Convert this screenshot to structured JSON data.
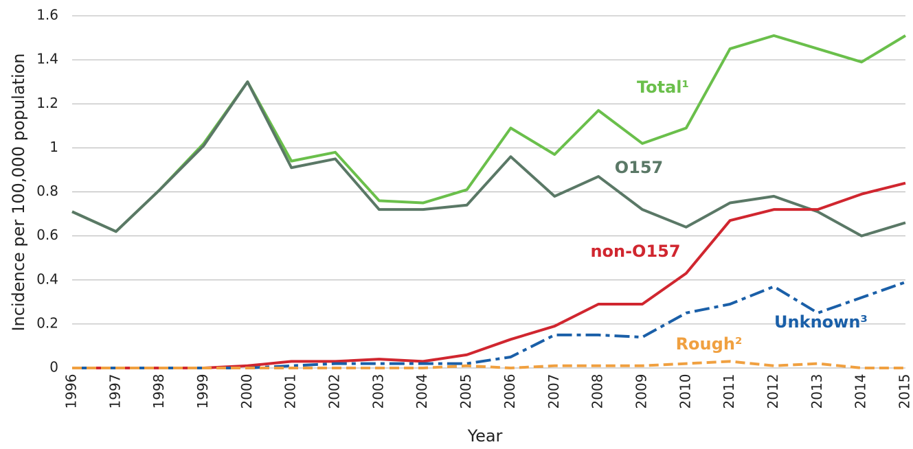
{
  "chart_data": {
    "type": "line",
    "x_label": "Year",
    "y_label": "Incidence per 100,000 population",
    "categories": [
      "1996",
      "1997",
      "1998",
      "1999",
      "2000",
      "2001",
      "2002",
      "2003",
      "2004",
      "2005",
      "2006",
      "2007",
      "2008",
      "2009",
      "2010",
      "2011",
      "2012",
      "2013",
      "2014",
      "2015"
    ],
    "series": [
      {
        "name": "Total¹",
        "color": "#6abf4b",
        "style": "solid",
        "values": [
          0.71,
          0.62,
          0.81,
          1.02,
          1.3,
          0.94,
          0.98,
          0.76,
          0.75,
          0.81,
          1.09,
          0.97,
          1.17,
          1.02,
          1.09,
          1.45,
          1.51,
          1.45,
          1.39,
          1.51
        ]
      },
      {
        "name": "O157",
        "color": "#5a7866",
        "style": "solid",
        "values": [
          0.71,
          0.62,
          0.81,
          1.01,
          1.3,
          0.91,
          0.95,
          0.72,
          0.72,
          0.74,
          0.96,
          0.78,
          0.87,
          0.72,
          0.64,
          0.75,
          0.78,
          0.71,
          0.6,
          0.66
        ]
      },
      {
        "name": "non-O157",
        "color": "#d0262f",
        "style": "solid",
        "values": [
          0,
          0,
          0,
          0,
          0.01,
          0.03,
          0.03,
          0.04,
          0.03,
          0.06,
          0.13,
          0.19,
          0.29,
          0.29,
          0.43,
          0.67,
          0.72,
          0.72,
          0.79,
          0.84
        ]
      },
      {
        "name": "Unknown³",
        "color": "#1a5fa8",
        "style": "dashdot",
        "values": [
          0,
          0,
          0,
          0,
          0,
          0.01,
          0.02,
          0.02,
          0.02,
          0.02,
          0.05,
          0.15,
          0.15,
          0.14,
          0.25,
          0.29,
          0.37,
          0.25,
          0.32,
          0.39
        ]
      },
      {
        "name": "Rough²",
        "color": "#f0a040",
        "style": "dashed",
        "values": [
          0,
          0,
          0,
          0,
          0,
          0,
          0,
          0,
          0,
          0.01,
          0,
          0.01,
          0.01,
          0.01,
          0.02,
          0.03,
          0.01,
          0.02,
          0,
          0
        ]
      }
    ],
    "ylim": [
      0,
      1.6
    ],
    "yticks": [
      0,
      0.2,
      0.4,
      0.6,
      0.8,
      1,
      1.2,
      1.4,
      1.6
    ],
    "grid": true
  }
}
